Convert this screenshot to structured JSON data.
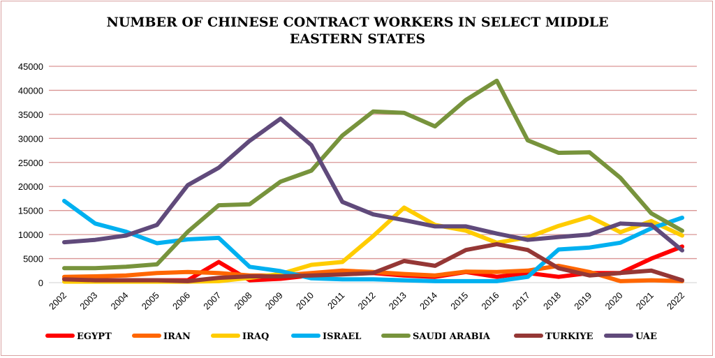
{
  "chart_data": {
    "type": "line",
    "title_lines": [
      "NUMBER OF CHINESE CONTRACT WORKERS IN SELECT MIDDLE",
      "EASTERN STATES"
    ],
    "xlabel": "",
    "ylabel": "",
    "ylim": [
      0,
      45000
    ],
    "yticks": [
      "0",
      "5000",
      "10000",
      "15000",
      "20000",
      "25000",
      "30000",
      "35000",
      "40000",
      "45000"
    ],
    "categories": [
      "2002",
      "2003",
      "2004",
      "2005",
      "2006",
      "2007",
      "2008",
      "2009",
      "2010",
      "2011",
      "2012",
      "2013",
      "2014",
      "2015",
      "2016",
      "2017",
      "2018",
      "2019",
      "2020",
      "2021",
      "2022"
    ],
    "grid": true,
    "legend_position": "bottom",
    "series": [
      {
        "name": "EGYPT",
        "color": "#ff0000",
        "values": [
          800,
          500,
          500,
          500,
          500,
          4300,
          500,
          800,
          1500,
          2000,
          2000,
          1500,
          1200,
          2200,
          1200,
          2000,
          1200,
          2000,
          2000,
          5000,
          7500
        ]
      },
      {
        "name": "IRAN",
        "color": "#ff6600",
        "values": [
          1200,
          1300,
          1500,
          2000,
          2200,
          2000,
          1500,
          1500,
          2000,
          2500,
          2200,
          1800,
          1500,
          2300,
          2200,
          2500,
          3500,
          2200,
          300,
          500,
          300
        ]
      },
      {
        "name": "IRAQ",
        "color": "#ffcc00",
        "values": [
          200,
          200,
          200,
          200,
          200,
          300,
          1000,
          1800,
          3700,
          4300,
          9700,
          15600,
          12000,
          10800,
          8300,
          9400,
          11800,
          13700,
          10500,
          12800,
          9800
        ]
      },
      {
        "name": "ISRAEL",
        "color": "#00b0f0",
        "values": [
          17000,
          12300,
          10600,
          8200,
          9000,
          9300,
          3300,
          2400,
          900,
          700,
          700,
          500,
          300,
          300,
          300,
          1200,
          6900,
          7300,
          8300,
          11300,
          13500
        ]
      },
      {
        "name": "SAUDI ARABIA",
        "color": "#77933c",
        "values": [
          3000,
          3000,
          3300,
          3800,
          10600,
          16100,
          16300,
          21000,
          23300,
          30600,
          35600,
          35300,
          32500,
          38000,
          42000,
          29600,
          27000,
          27100,
          21800,
          14400,
          10800
        ]
      },
      {
        "name": "TURKIYE",
        "color": "#953735",
        "values": [
          700,
          500,
          500,
          500,
          300,
          1000,
          1300,
          1300,
          1500,
          1700,
          2000,
          4500,
          3500,
          6800,
          8000,
          6800,
          3000,
          1500,
          2000,
          2500,
          500
        ]
      },
      {
        "name": "UAE",
        "color": "#604a7b",
        "values": [
          8400,
          8900,
          9800,
          12000,
          20300,
          23900,
          29500,
          34100,
          28600,
          16800,
          14200,
          13000,
          11700,
          11700,
          10200,
          8900,
          9500,
          10000,
          12300,
          12000,
          6700
        ]
      }
    ]
  }
}
